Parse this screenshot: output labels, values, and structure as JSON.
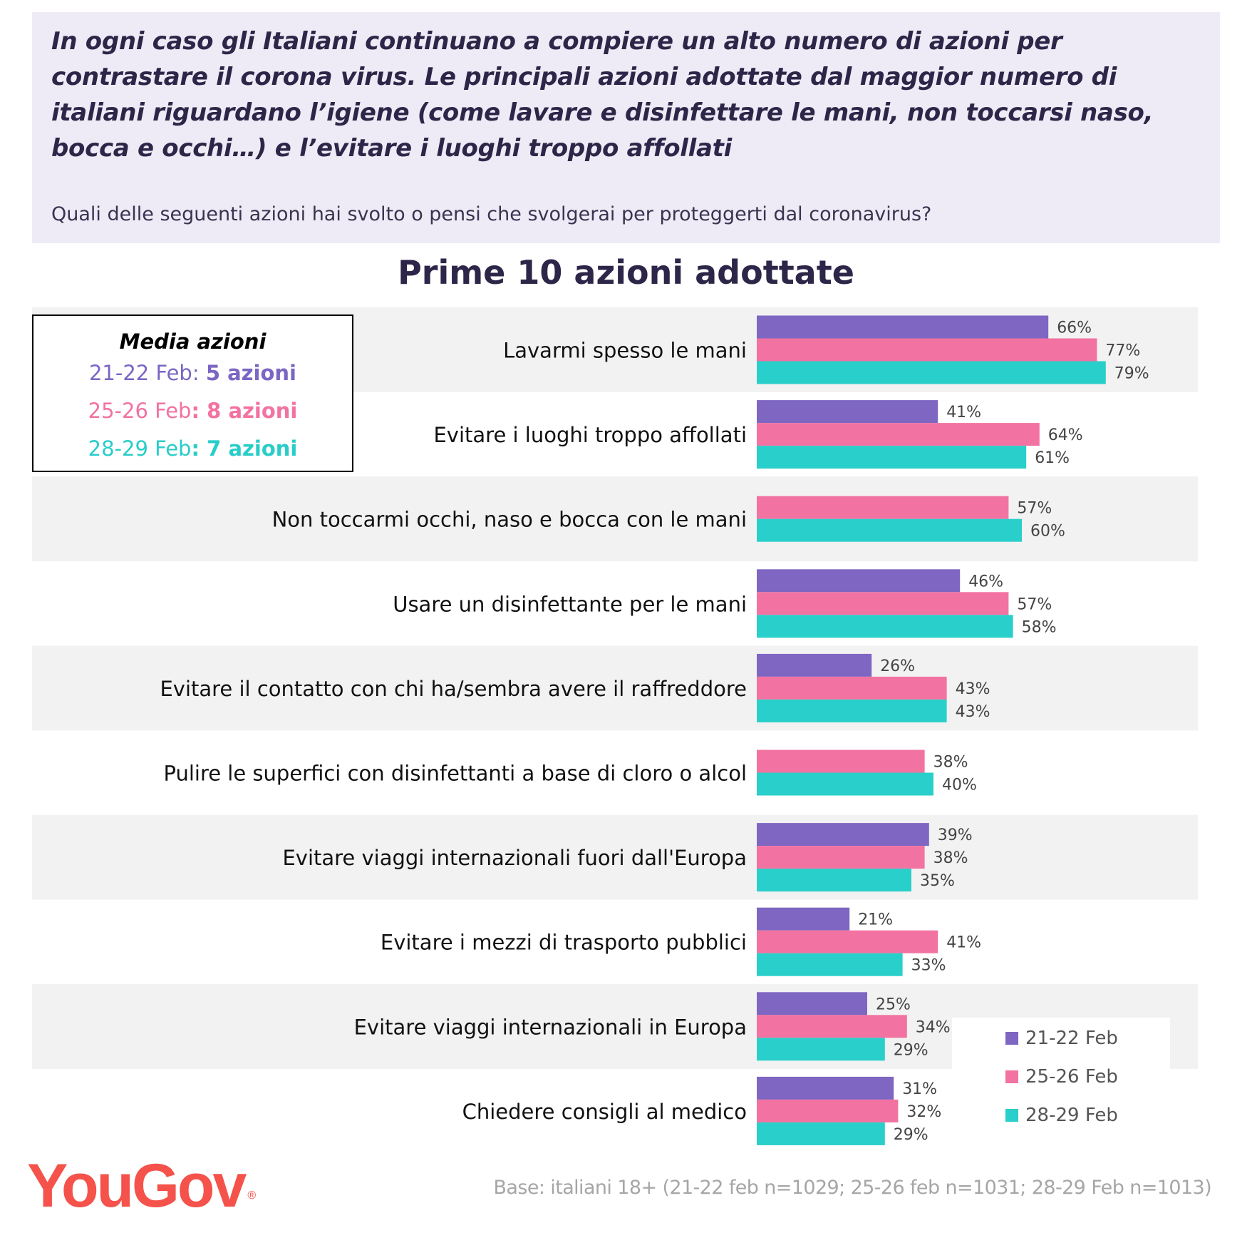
{
  "header": {
    "headline": "In ogni caso gli Italiani continuano a compiere un alto numero di azioni per contrastare il corona virus. Le principali azioni adottate dal maggior numero di italiani riguardano l’igiene (come lavare e disinfettare le mani, non toccarsi naso, bocca e occhi…) e l’evitare i luoghi troppo affollati",
    "question": "Quali delle seguenti azioni hai svolto o pensi che svolgerai per proteggerti dal coronavirus?"
  },
  "media_box": {
    "title": "Media azioni",
    "lines": [
      {
        "period": "21-22 Feb",
        "sep": ": ",
        "value": "5 azioni",
        "color": "#7b66c3"
      },
      {
        "period": "25-26 Feb",
        "sep": ": ",
        "value": "8 azioni",
        "color": "#f272a1"
      },
      {
        "period": "28-29 Feb",
        "sep": ": ",
        "value": "7 azioni",
        "color": "#28cdc9"
      }
    ]
  },
  "chart_data": {
    "type": "bar",
    "orientation": "horizontal",
    "title": "Prime 10 azioni adottate",
    "xlabel": "",
    "ylabel": "",
    "xlim": [
      0,
      100
    ],
    "grid": false,
    "legend_position": "bottom-right",
    "categories": [
      "Lavarmi spesso le mani",
      "Evitare i luoghi troppo affollati",
      "Non toccarmi occhi, naso e bocca con le mani",
      "Usare un disinfettante per le mani",
      "Evitare il contatto con chi ha/sembra avere il raffreddore",
      "Pulire le superfici con disinfettanti a base di cloro o alcol",
      "Evitare viaggi internazionali fuori dall'Europa",
      "Evitare i mezzi di trasporto pubblici",
      "Evitare viaggi internazionali in Europa",
      "Chiedere consigli al medico"
    ],
    "series": [
      {
        "name": "21-22 Feb",
        "color": "#7e66c2",
        "values": [
          66,
          41,
          null,
          46,
          26,
          null,
          39,
          21,
          25,
          31
        ]
      },
      {
        "name": "25-26 Feb",
        "color": "#f272a1",
        "values": [
          77,
          64,
          57,
          57,
          43,
          38,
          38,
          41,
          34,
          32
        ]
      },
      {
        "name": "28-29 Feb",
        "color": "#29cfca",
        "values": [
          79,
          61,
          60,
          58,
          43,
          40,
          35,
          33,
          29,
          29
        ]
      }
    ],
    "value_suffix": "%"
  },
  "logo": {
    "text": "YouGov",
    "mark": "®"
  },
  "footer": {
    "base": "Base: italiani 18+ (21-22 feb n=1029; 25-26 feb n=1031; 28-29 Feb n=1013)"
  }
}
